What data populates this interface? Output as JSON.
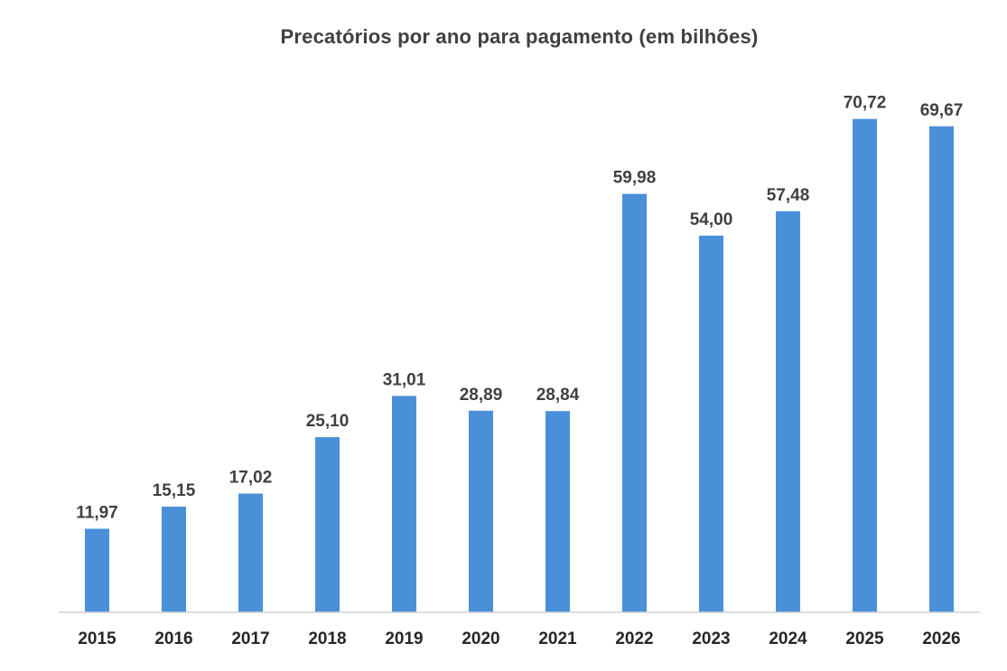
{
  "chart_data": {
    "type": "bar",
    "title": "Precatórios por ano para pagamento (em bilhões)",
    "xlabel": "",
    "ylabel": "",
    "categories": [
      "2015",
      "2016",
      "2017",
      "2018",
      "2019",
      "2020",
      "2021",
      "2022",
      "2023",
      "2024",
      "2025",
      "2026"
    ],
    "values": [
      11.97,
      15.15,
      17.02,
      25.1,
      31.01,
      28.89,
      28.84,
      59.98,
      54.0,
      57.48,
      70.72,
      69.67
    ],
    "value_labels": [
      "11,97",
      "15,15",
      "17,02",
      "25,10",
      "31,01",
      "28,89",
      "28,84",
      "59,98",
      "54,00",
      "57,48",
      "70,72",
      "69,67"
    ],
    "ylim": [
      0,
      80
    ],
    "grid": false,
    "legend": "none",
    "bar_color": "#4a90d9"
  }
}
